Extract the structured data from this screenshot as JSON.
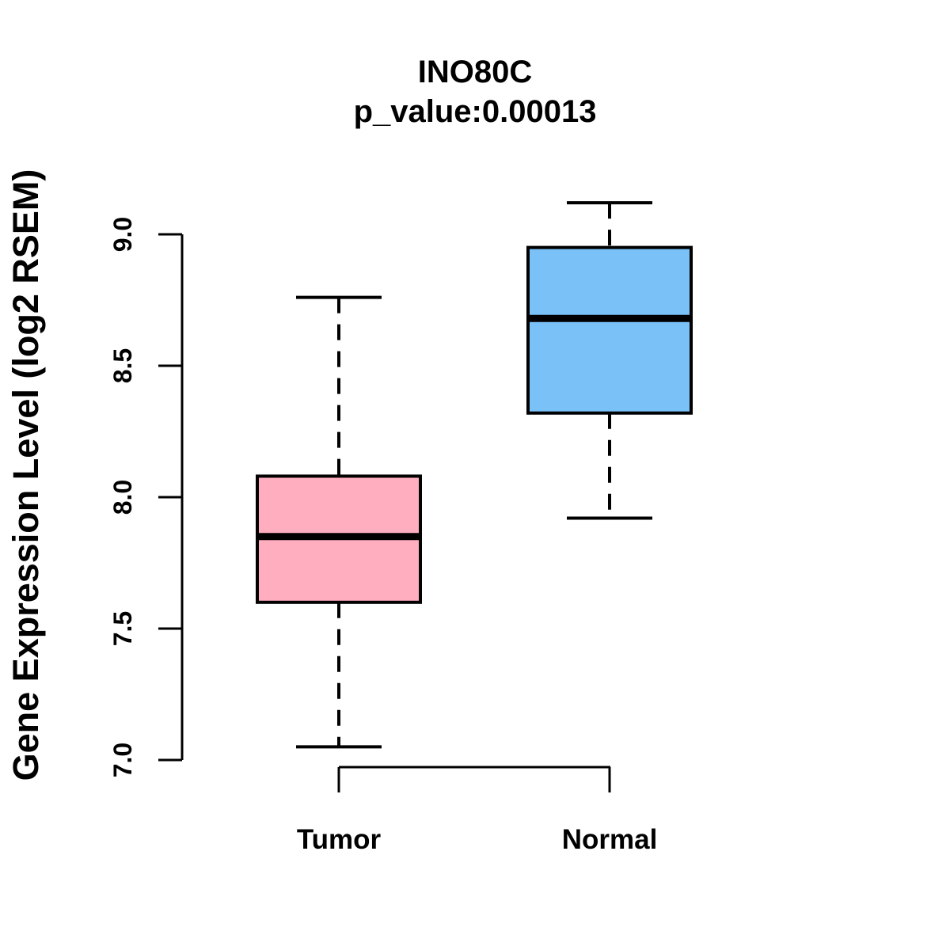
{
  "title": {
    "line1": "INO80C",
    "line2": "p_value:0.00013"
  },
  "y_axis": {
    "label": "Gene Expression Level (log2 RSEM)",
    "tick_labels": [
      "7.0",
      "7.5",
      "8.0",
      "8.5",
      "9.0"
    ]
  },
  "x_axis": {
    "categories": [
      "Tumor",
      "Normal"
    ]
  },
  "colors": {
    "tumor_fill": "#FFAEC0",
    "normal_fill": "#79C1F7",
    "stroke": "#000000",
    "background": "#FFFFFF"
  },
  "chart_data": {
    "type": "boxplot",
    "title": "INO80C",
    "subtitle": "p_value:0.00013",
    "ylabel": "Gene Expression Level (log2 RSEM)",
    "xlabel": "",
    "ylim": [
      7.0,
      9.0
    ],
    "yticks": [
      7.0,
      7.5,
      8.0,
      8.5,
      9.0
    ],
    "categories": [
      "Tumor",
      "Normal"
    ],
    "grid": false,
    "legend": false,
    "series": [
      {
        "name": "Tumor",
        "color": "#FFAEC0",
        "lower_whisker": 7.05,
        "q1": 7.6,
        "median": 7.85,
        "q3": 8.08,
        "upper_whisker": 8.76
      },
      {
        "name": "Normal",
        "color": "#79C1F7",
        "lower_whisker": 7.92,
        "q1": 8.32,
        "median": 8.68,
        "q3": 8.95,
        "upper_whisker": 9.12
      }
    ]
  }
}
